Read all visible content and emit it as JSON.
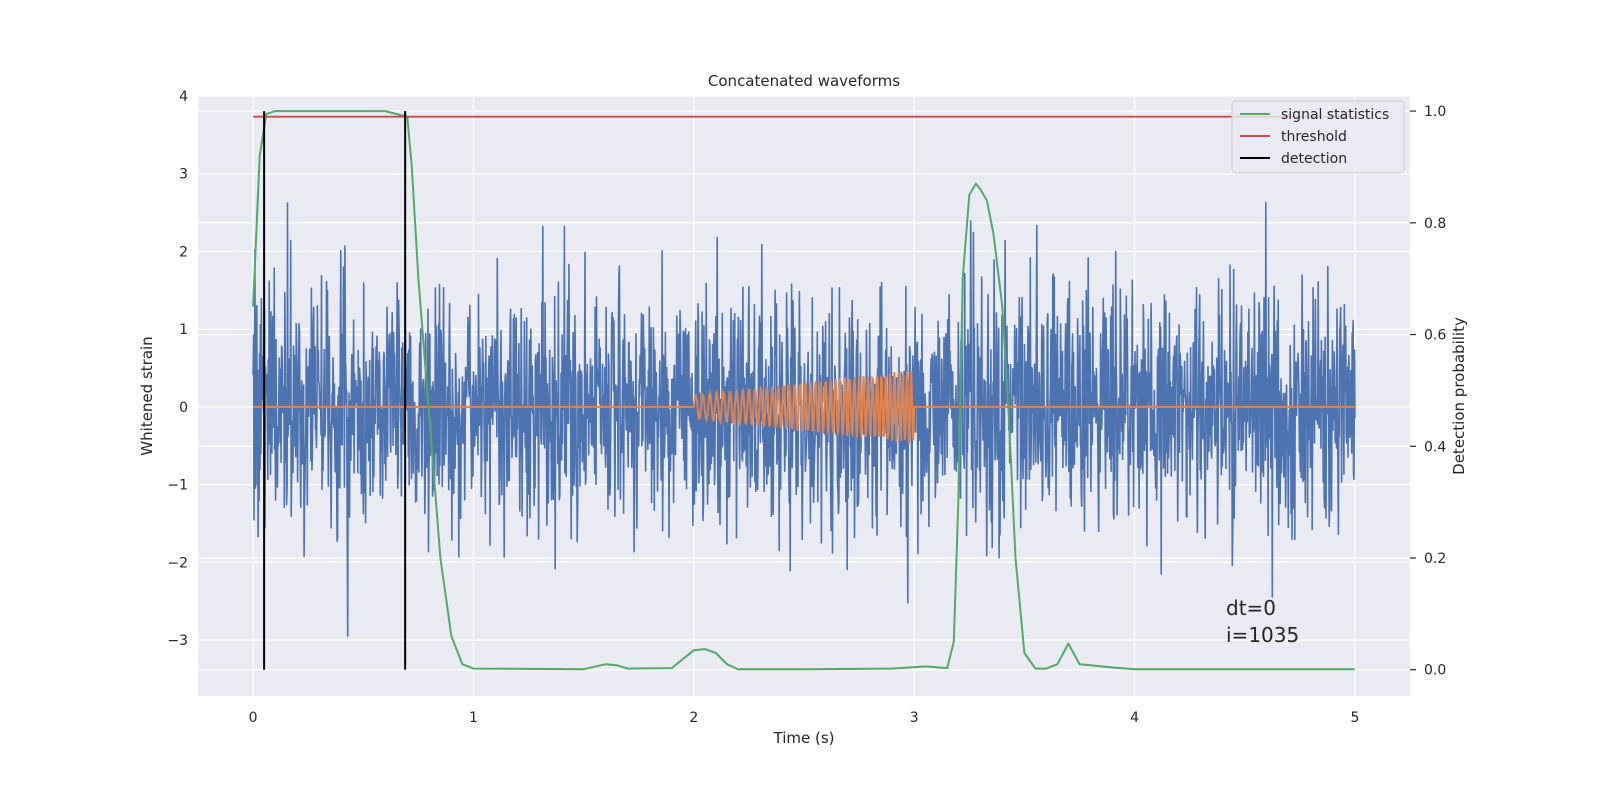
{
  "chart_data": {
    "type": "line",
    "title": "Concatenated waveforms",
    "xlabel": "Time (s)",
    "ylabel": "Whitened strain",
    "y2label": "Detection probability",
    "xlim": [
      -0.25,
      5.25
    ],
    "ylim": [
      -3.72,
      4.0
    ],
    "y2lim": [
      -0.047,
      1.027
    ],
    "x_ticks": [
      0,
      1,
      2,
      3,
      4,
      5
    ],
    "y_ticks": [
      4,
      3,
      2,
      1,
      0,
      -1,
      -2,
      -3
    ],
    "y2_ticks": [
      "0.0",
      "0.2",
      "0.4",
      "0.6",
      "0.8",
      "1.0"
    ],
    "grid": true,
    "legend_position": "upper right",
    "series": [
      {
        "name": "",
        "axis": "left",
        "kind": "whitened noise (approx. Gaussian, std ~0.75, peaks to ~±3.3)",
        "x_range": [
          0,
          5
        ],
        "color": "#4c72b0"
      },
      {
        "name": "",
        "axis": "left",
        "kind": "injected chirp",
        "x_range": [
          2,
          3
        ],
        "amplitude_start": 0.15,
        "amplitude_end": 0.48,
        "color": "#dd8452"
      },
      {
        "name": "signal statistics",
        "axis": "right",
        "color": "#55a868",
        "x": [
          0,
          0.03,
          0.06,
          0.1,
          0.3,
          0.6,
          0.7,
          0.72,
          0.75,
          0.8,
          0.85,
          0.9,
          0.95,
          1.0,
          1.5,
          1.6,
          1.65,
          1.7,
          1.9,
          2.0,
          2.05,
          2.1,
          2.15,
          2.2,
          2.5,
          2.9,
          3.05,
          3.15,
          3.18,
          3.2,
          3.22,
          3.25,
          3.28,
          3.3,
          3.33,
          3.36,
          3.4,
          3.43,
          3.46,
          3.5,
          3.55,
          3.6,
          3.65,
          3.7,
          3.75,
          3.8,
          3.9,
          4.0,
          5.0
        ],
        "y": [
          0.65,
          0.92,
          0.995,
          1.0,
          1.0,
          1.0,
          0.99,
          0.9,
          0.7,
          0.45,
          0.2,
          0.06,
          0.01,
          0.002,
          0.001,
          0.01,
          0.008,
          0.002,
          0.003,
          0.035,
          0.037,
          0.03,
          0.01,
          0.001,
          0.001,
          0.002,
          0.006,
          0.003,
          0.05,
          0.3,
          0.7,
          0.85,
          0.87,
          0.86,
          0.84,
          0.78,
          0.65,
          0.45,
          0.2,
          0.03,
          0.002,
          0.002,
          0.01,
          0.047,
          0.01,
          0.008,
          0.004,
          0.001,
          0.001
        ]
      },
      {
        "name": "threshold",
        "axis": "right",
        "color": "#c44e52",
        "x": [
          0,
          5
        ],
        "y": [
          0.99,
          0.99
        ]
      },
      {
        "name": "detection",
        "axis": "right",
        "color": "#000000",
        "vlines_x": [
          0.05,
          0.69
        ],
        "y_from": 0.0,
        "y_to": 1.0
      }
    ],
    "annotation": [
      "dt=0",
      "i=1035"
    ]
  }
}
